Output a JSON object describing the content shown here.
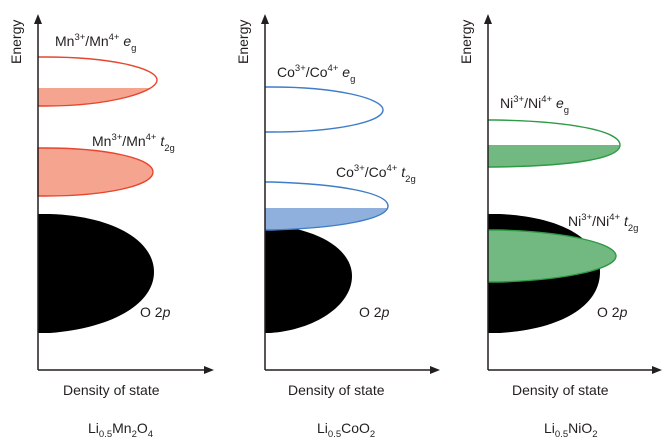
{
  "axes": {
    "energy_label": "Energy",
    "dos_label": "Density of state"
  },
  "colors": {
    "mn_stroke": "#e8452f",
    "mn_fill": "#f5a58f",
    "co_stroke": "#3f7dc8",
    "co_fill": "#8fb0dd",
    "ni_stroke": "#2f9a45",
    "ni_fill": "#72b981",
    "o2p_fill": "#000000",
    "axis": "#231f20"
  },
  "panels": [
    {
      "id": "mn",
      "compound": {
        "a": "Li",
        "a_sub": "0.5",
        "b": "Mn",
        "b_sub": "2",
        "c": "O",
        "c_sub": "4"
      },
      "eg": {
        "ion1": "Mn",
        "ox1": "3+",
        "ion2": "Mn",
        "ox2": "4+",
        "orbital": "e",
        "orbital_sub": "g"
      },
      "t2g": {
        "ion1": "Mn",
        "ox1": "3+",
        "ion2": "Mn",
        "ox2": "4+",
        "orbital": "t",
        "orbital_sub": "2g"
      },
      "o2p": {
        "prefix": "O 2",
        "orbital": "p"
      }
    },
    {
      "id": "co",
      "compound": {
        "a": "Li",
        "a_sub": "0.5",
        "b": "CoO",
        "b_sub": "2",
        "c": "",
        "c_sub": ""
      },
      "eg": {
        "ion1": "Co",
        "ox1": "3+",
        "ion2": "Co",
        "ox2": "4+",
        "orbital": "e",
        "orbital_sub": "g"
      },
      "t2g": {
        "ion1": "Co",
        "ox1": "3+",
        "ion2": "Co",
        "ox2": "4+",
        "orbital": "t",
        "orbital_sub": "2g"
      },
      "o2p": {
        "prefix": "O 2",
        "orbital": "p"
      }
    },
    {
      "id": "ni",
      "compound": {
        "a": "Li",
        "a_sub": "0.5",
        "b": "NiO",
        "b_sub": "2",
        "c": "",
        "c_sub": ""
      },
      "eg": {
        "ion1": "Ni",
        "ox1": "3+",
        "ion2": "Ni",
        "ox2": "4+",
        "orbital": "e",
        "orbital_sub": "g"
      },
      "t2g": {
        "ion1": "Ni",
        "ox1": "3+",
        "ion2": "Ni",
        "ox2": "4+",
        "orbital": "t",
        "orbital_sub": "2g"
      },
      "o2p": {
        "prefix": "O 2",
        "orbital": "p"
      }
    }
  ]
}
